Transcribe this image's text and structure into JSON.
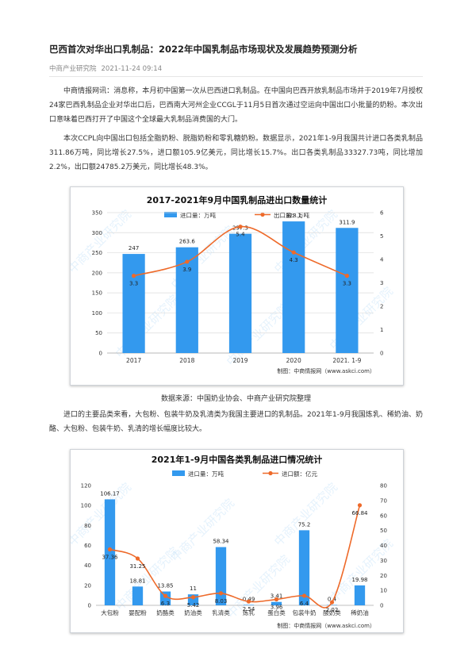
{
  "article": {
    "title": "巴西首次对华出口乳制品：2022年中国乳制品市场现状及发展趋势预测分析",
    "source": "中商产业研究院",
    "date": "2021-11-24 09:14",
    "p1": "中商情报网讯：消息称，本月初中国第一次从巴西进口乳制品。在中国向巴西开放乳制品市场并于2019年7月授权24家巴西乳制品企业对华出口后，巴西南大河州企业CCGL于11月5日首次通过空运向中国出口小批量的奶粉。本次出口意味着巴西打开了中国这个全球最大乳制品消费国的大门。",
    "p2": "本次CCPL向中国出口包括全脂奶粉、脱脂奶粉和零乳糖奶粉。数据显示，2021年1-9月我国共计进口各类乳制品311.86万吨，同比增长27.5%，进口额105.9亿美元，同比增长15.7%。出口各类乳制品33327.73吨，同比增加2.2%，出口额24785.2万美元，同比增长48.3%。",
    "data_source": "数据来源：中国奶业协会、中商产业研究院整理",
    "p3": "进口的主要品类来看，大包粉、包装牛奶及乳清类为我国主要进口的乳制品。2021年1-9月我国炼乳、稀奶油、奶酪、大包粉、包装牛奶、乳清的增长幅度比较大。"
  },
  "watermark": "中商产业研究院",
  "chart_data": [
    {
      "type": "bar+line",
      "title": "2017-2021年9月中国乳制品进出口数量统计",
      "categories": [
        "2017",
        "2018",
        "2019",
        "2020",
        "2021. 1-9"
      ],
      "series": [
        {
          "name": "进口量：万吨",
          "kind": "bar",
          "axis": "left",
          "values": [
            247,
            263.6,
            297.3,
            328.1,
            311.9
          ],
          "labels": [
            "247",
            "263.6",
            "297.3",
            "328.1",
            "311.9"
          ]
        },
        {
          "name": "出口量：万吨",
          "kind": "line",
          "axis": "right",
          "values": [
            3.3,
            3.9,
            5.4,
            4.3,
            3.3
          ],
          "labels": [
            "3.3",
            "3.9",
            "5.4",
            "4.3",
            "3.3"
          ]
        }
      ],
      "ylim_left": [
        0,
        350
      ],
      "yticks_left": [
        0,
        50,
        100,
        150,
        200,
        250,
        300,
        350
      ],
      "ylim_right": [
        0,
        6
      ],
      "yticks_right": [
        0,
        1,
        2,
        3,
        4,
        5,
        6
      ],
      "grid": true,
      "legend": "top-center",
      "credit": "制图：中商情报网（www.askci.com）",
      "colors": {
        "bar": "#3399ee",
        "line": "#ee6a2a"
      }
    },
    {
      "type": "bar+line",
      "title": "2021年1-9月中国各类乳制品进口情况统计",
      "categories": [
        "大包粉",
        "婴配粉",
        "奶酪类",
        "奶油类",
        "乳清类",
        "炼乳",
        "蛋白类",
        "包装牛奶",
        "酸奶类",
        "稀奶油"
      ],
      "series": [
        {
          "name": "进口量：万吨",
          "kind": "bar",
          "axis": "left",
          "values": [
            106.17,
            18.81,
            13.85,
            11,
            58.34,
            0.49,
            3.41,
            75.2,
            0.4,
            19.98
          ],
          "labels": [
            "106.17",
            "18.81",
            "13.85",
            "11",
            "58.34",
            "0.49",
            "3.41",
            "75.2",
            "0.4",
            "19.98"
          ]
        },
        {
          "name": "进口额：亿元",
          "kind": "line",
          "axis": "right",
          "values": [
            37.36,
            31.25,
            6.3,
            5.42,
            8.03,
            2.54,
            3.96,
            6.4,
            2.02,
            66.84
          ],
          "labels": [
            "37.36",
            "31.25",
            "6.3",
            "5.42",
            "8.03",
            "2.54",
            "3.96",
            "6.4",
            "2.02",
            "66.84"
          ]
        }
      ],
      "ylim_left": [
        0,
        120
      ],
      "yticks_left": [
        0,
        20,
        40,
        60,
        80,
        100,
        120
      ],
      "ylim_right": [
        0,
        80
      ],
      "yticks_right": [
        0,
        10,
        20,
        30,
        40,
        50,
        60,
        70,
        80
      ],
      "grid": false,
      "legend": "top-center",
      "credit": "制图：中商情报网（www.askci.com）",
      "colors": {
        "bar": "#3399ee",
        "line": "#ee6a2a"
      }
    }
  ]
}
